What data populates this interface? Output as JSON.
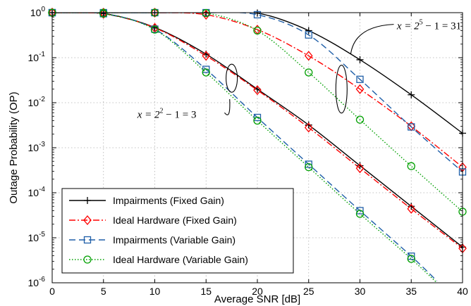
{
  "chart_data": {
    "type": "line",
    "xlabel": "Average SNR [dB]",
    "ylabel": "Outage Probability (OP)",
    "y_scale": "log",
    "xlim": [
      0,
      40
    ],
    "ylim": [
      1e-06,
      1
    ],
    "grid": true,
    "legend_position": "bottom-left",
    "x_ticks": [
      "0",
      "5",
      "10",
      "15",
      "20",
      "25",
      "30",
      "35",
      "40"
    ],
    "y_ticks": [
      {
        "value": 1e-06,
        "base": "10",
        "exp": "-6"
      },
      {
        "value": 1e-05,
        "base": "10",
        "exp": "-5"
      },
      {
        "value": 0.0001,
        "base": "10",
        "exp": "-4"
      },
      {
        "value": 0.001,
        "base": "10",
        "exp": "-3"
      },
      {
        "value": 0.01,
        "base": "10",
        "exp": "-2"
      },
      {
        "value": 0.1,
        "base": "10",
        "exp": "-1"
      },
      {
        "value": 1,
        "base": "10",
        "exp": "0"
      }
    ],
    "annotations": [
      {
        "id": "x31",
        "base": "x = 2",
        "exp": "5",
        "rest": " − 1 = 31"
      },
      {
        "id": "x3",
        "base": "x = 2",
        "exp": "2",
        "rest": " − 1 = 3"
      }
    ],
    "series": [
      {
        "name": "Impairments (Fixed Gain)",
        "group": "x=31",
        "style": "solid",
        "marker": "plus",
        "color": "#000000",
        "x": [
          0,
          5,
          10,
          15,
          20,
          25,
          30,
          35,
          40
        ],
        "y": [
          1.0,
          1.0,
          1.0,
          1.0,
          0.98,
          0.4,
          0.09,
          0.015,
          0.0021
        ]
      },
      {
        "name": "Ideal Hardware (Fixed Gain)",
        "group": "x=31",
        "style": "dashdot",
        "marker": "diamond",
        "color": "#ff0000",
        "x": [
          0,
          5,
          10,
          15,
          20,
          25,
          30,
          35,
          40
        ],
        "y": [
          1.0,
          1.0,
          1.0,
          0.9,
          0.42,
          0.11,
          0.02,
          0.003,
          0.00037
        ]
      },
      {
        "name": "Impairments (Variable Gain)",
        "group": "x=31",
        "style": "dashed",
        "marker": "square",
        "color": "#1f5fa8",
        "x": [
          0,
          5,
          10,
          15,
          20,
          25,
          30,
          35,
          40
        ],
        "y": [
          1.0,
          1.0,
          1.0,
          1.0,
          0.9,
          0.32,
          0.033,
          0.0029,
          0.00029
        ]
      },
      {
        "name": "Ideal Hardware (Variable Gain)",
        "group": "x=31",
        "style": "dotted",
        "marker": "circle",
        "color": "#00a000",
        "x": [
          0,
          5,
          10,
          15,
          20,
          25,
          30,
          35,
          40
        ],
        "y": [
          1.0,
          1.0,
          1.0,
          0.98,
          0.4,
          0.047,
          0.0042,
          0.00039,
          3.8e-05
        ]
      },
      {
        "name": "Impairments (Fixed Gain)",
        "group": "x=3",
        "style": "solid",
        "marker": "plus",
        "color": "#000000",
        "x": [
          0,
          5,
          10,
          15,
          20,
          25,
          30,
          35,
          40
        ],
        "y": [
          1.0,
          0.96,
          0.47,
          0.12,
          0.02,
          0.0032,
          0.0004,
          5e-05,
          6.2e-06
        ]
      },
      {
        "name": "Ideal Hardware (Fixed Gain)",
        "group": "x=3",
        "style": "dashdot",
        "marker": "diamond",
        "color": "#ff0000",
        "x": [
          0,
          5,
          10,
          15,
          20,
          25,
          30,
          35,
          40
        ],
        "y": [
          1.0,
          0.94,
          0.46,
          0.11,
          0.019,
          0.0028,
          0.00035,
          4.4e-05,
          5.8e-06
        ]
      },
      {
        "name": "Impairments (Variable Gain)",
        "group": "x=3",
        "style": "dashed",
        "marker": "square",
        "color": "#1f5fa8",
        "x": [
          0,
          5,
          10,
          15,
          20,
          25,
          30,
          35,
          37.5
        ],
        "y": [
          1.0,
          0.95,
          0.43,
          0.055,
          0.0047,
          0.00043,
          4e-05,
          3.9e-06,
          1.1e-06
        ]
      },
      {
        "name": "Ideal Hardware (Variable Gain)",
        "group": "x=3",
        "style": "dotted",
        "marker": "circle",
        "color": "#00a000",
        "x": [
          0,
          5,
          10,
          15,
          20,
          25,
          30,
          35,
          37.5
        ],
        "y": [
          1.0,
          0.95,
          0.42,
          0.047,
          0.004,
          0.00037,
          3.4e-05,
          3.4e-06,
          1e-06
        ]
      }
    ]
  }
}
